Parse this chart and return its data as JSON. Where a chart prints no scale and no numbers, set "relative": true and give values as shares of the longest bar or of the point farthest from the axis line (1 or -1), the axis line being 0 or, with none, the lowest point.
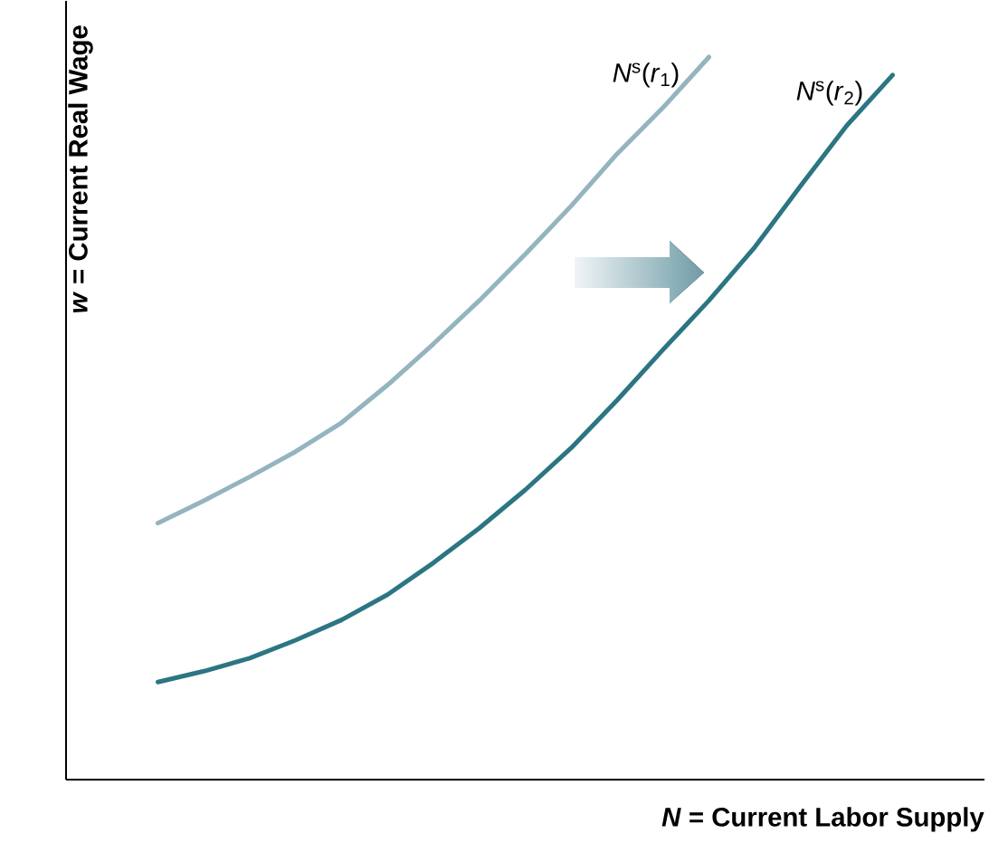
{
  "chart_data": {
    "type": "line",
    "xlabel": "*N* = Current Labor Supply",
    "ylabel": "*w* = Current Real Wage",
    "relative": true,
    "marker": "none",
    "line_style": "solid",
    "categories": [
      null,
      null,
      null,
      null,
      null,
      null,
      null,
      null,
      null,
      null,
      null,
      null,
      null,
      null,
      null,
      null,
      null,
      null,
      null,
      null,
      null
    ],
    "series": [
      {
        "name": "*N*$^{s}$(*r*$_{1}$)",
        "color": "#94b4bf",
        "values": [
          null,
          null,
          0.355,
          0.386,
          0.419,
          0.454,
          0.494,
          0.546,
          0.603,
          0.663,
          0.727,
          0.794,
          0.866,
          0.93,
          1.0,
          null,
          null,
          null,
          null,
          null,
          null
        ]
      },
      {
        "name": "*N*$^{s}$(*r*$_{2}$)",
        "color": "#2b7682",
        "values": [
          null,
          null,
          0.135,
          0.15,
          0.168,
          0.193,
          0.221,
          0.256,
          0.3,
          0.348,
          0.401,
          0.459,
          0.525,
          0.595,
          0.663,
          0.737,
          0.822,
          0.905,
          0.975,
          null,
          null
        ]
      }
    ]
  }
}
